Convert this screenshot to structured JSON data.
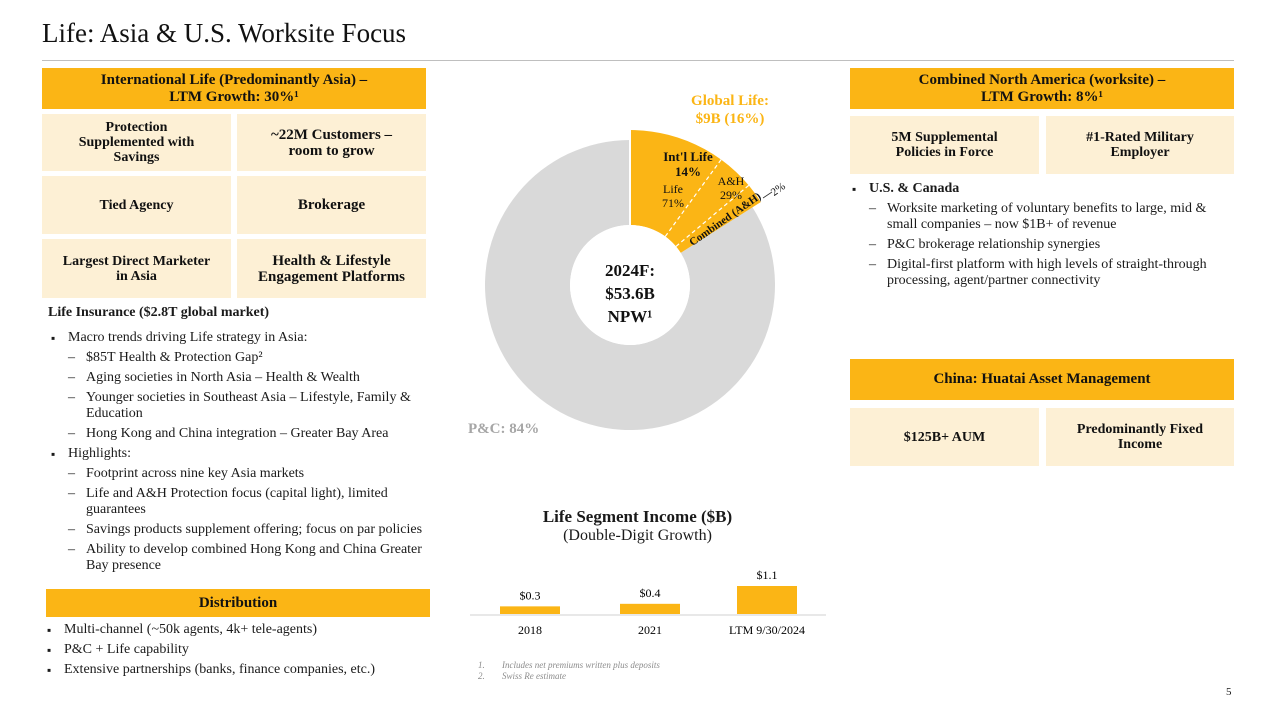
{
  "page": {
    "title": "Life: Asia & U.S. Worksite Focus",
    "page_number": "5"
  },
  "left": {
    "header": [
      "International Life (Predominantly Asia) –",
      "LTM Growth: 30%¹"
    ],
    "tiles": [
      [
        "Protection",
        "Supplemented with",
        "Savings"
      ],
      [
        "~22M Customers –",
        "room to grow"
      ],
      [
        "Tied Agency"
      ],
      [
        "Brokerage"
      ],
      [
        "Largest Direct Marketer",
        "in Asia"
      ],
      [
        "Health & Lifestyle",
        "Engagement Platforms"
      ]
    ],
    "life_insurance_label": "Life Insurance ($2.8T global market)",
    "macro": {
      "text": "Macro trends driving Life strategy in Asia:",
      "items": [
        "$85T Health & Protection Gap²",
        "Aging societies in North Asia – Health & Wealth",
        "Younger societies in Southeast Asia – Lifestyle, Family & Education",
        "Hong Kong and China integration – Greater Bay Area"
      ]
    },
    "highlights": {
      "text": "Highlights:",
      "items": [
        "Footprint across nine key Asia markets",
        "Life and A&H Protection focus (capital light), limited guarantees",
        "Savings products supplement offering; focus on par policies",
        "Ability to develop combined Hong Kong and China Greater Bay presence"
      ]
    },
    "distribution": {
      "header": "Distribution",
      "items": [
        "Multi-channel (~50k agents, 4k+ tele-agents)",
        "P&C + Life capability",
        "Extensive partnerships (banks, finance companies, etc.)"
      ]
    }
  },
  "pie": {
    "center": [
      "2024F:",
      "$53.6B",
      "NPW¹"
    ],
    "global_life": [
      "Global Life:",
      "$9B (16%)"
    ],
    "pc_label": "P&C: 84%",
    "intl_life": [
      "Int'l Life",
      "14%"
    ],
    "life": [
      "Life",
      "71%"
    ],
    "ah": [
      "A&H",
      "29%"
    ],
    "combined": "Combined (A&H)",
    "combined_pct": "2%",
    "colors": {
      "pc": "#d9d9d9",
      "life": "#fbb515"
    }
  },
  "chart_data": {
    "type": "bar",
    "title": "Life Segment Income ($B)",
    "subtitle": "(Double-Digit Growth)",
    "categories": [
      "2018",
      "2021",
      "LTM 9/30/2024"
    ],
    "values": [
      0.3,
      0.4,
      1.1
    ],
    "value_labels": [
      "$0.3",
      "$0.4",
      "$1.1"
    ],
    "color": "#fbb515"
  },
  "footnotes": [
    "1.",
    "Includes net premiums written plus deposits",
    "2.",
    "Swiss Re estimate"
  ],
  "right": {
    "header": [
      "Combined North America (worksite) –",
      "LTM Growth: 8%¹"
    ],
    "tiles": [
      [
        "5M Supplemental",
        "Policies in Force"
      ],
      [
        "#1-Rated Military",
        "Employer"
      ]
    ],
    "us_canada": {
      "text": "U.S. & Canada",
      "items": [
        "Worksite marketing of voluntary benefits to large, mid & small companies – now $1B+ of revenue",
        "P&C brokerage relationship synergies",
        "Digital-first platform with high levels of straight-through processing, agent/partner connectivity"
      ]
    },
    "china": {
      "header": "China: Huatai Asset Management",
      "tiles": [
        [
          "$125B+ AUM"
        ],
        [
          "Predominantly Fixed",
          "Income"
        ]
      ]
    }
  }
}
